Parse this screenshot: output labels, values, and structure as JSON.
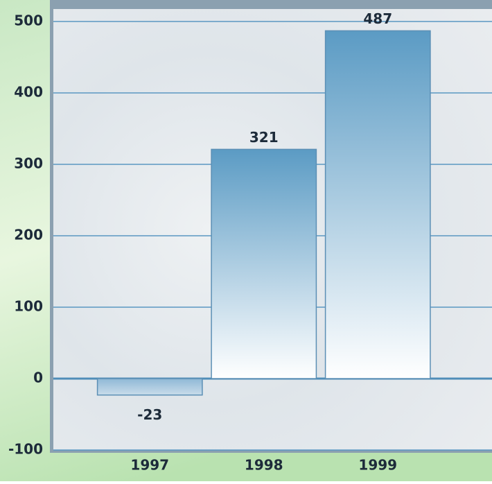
{
  "chart_data": {
    "type": "bar",
    "categories": [
      "1997",
      "1998",
      "1999"
    ],
    "values": [
      -23,
      321,
      487
    ],
    "color": "#5b9bc4",
    "ylim": [
      -100,
      500
    ],
    "yticks": [
      -100,
      0,
      100,
      200,
      300,
      400,
      500
    ],
    "grid": true
  }
}
